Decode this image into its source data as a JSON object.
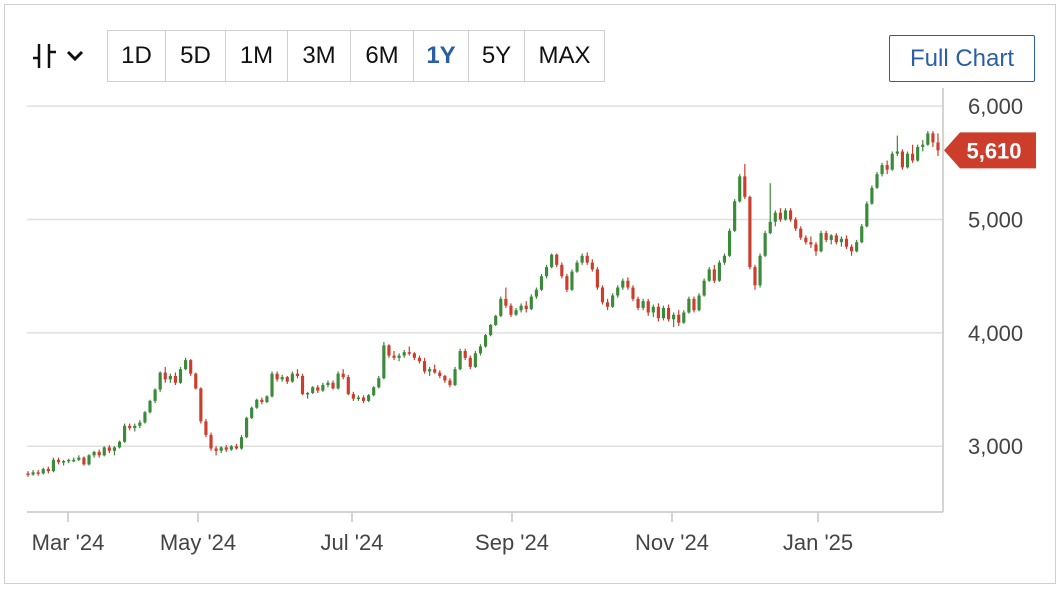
{
  "toolbar": {
    "ranges": [
      "1D",
      "5D",
      "1M",
      "3M",
      "6M",
      "1Y",
      "5Y",
      "MAX"
    ],
    "active_range": "1Y",
    "full_chart_label": "Full Chart",
    "chart_type_icon": "candlestick-icon",
    "dropdown_icon": "chevron-down-icon"
  },
  "colors": {
    "up": "#3a8a3a",
    "down": "#cc3d2b",
    "accent": "#2a5fa8",
    "grid": "#e0e0e0",
    "last_price_bg": "#cc3d2b"
  },
  "chart_data": {
    "type": "candlestick",
    "x_tick_labels": [
      "Mar '24",
      "May '24",
      "Jul '24",
      "Sep '24",
      "Nov '24",
      "Jan '25"
    ],
    "y_tick_labels": [
      "3,000",
      "4,000",
      "5,000",
      "6,000"
    ],
    "y_ticks": [
      3000,
      4000,
      5000,
      6000
    ],
    "ylim": [
      2420,
      6160
    ],
    "last_price": 5610,
    "last_price_label": "5,610",
    "grid": true,
    "legend": "none",
    "series": [
      {
        "values": [
          [
            2760,
            2780,
            2730,
            2750
          ],
          [
            2750,
            2790,
            2740,
            2770
          ],
          [
            2770,
            2790,
            2740,
            2760
          ],
          [
            2760,
            2810,
            2750,
            2800
          ],
          [
            2800,
            2820,
            2760,
            2780
          ],
          [
            2780,
            2900,
            2770,
            2880
          ],
          [
            2880,
            2900,
            2840,
            2860
          ],
          [
            2860,
            2880,
            2830,
            2870
          ],
          [
            2870,
            2890,
            2850,
            2880
          ],
          [
            2880,
            2900,
            2860,
            2880
          ],
          [
            2880,
            2920,
            2870,
            2900
          ],
          [
            2900,
            2910,
            2830,
            2840
          ],
          [
            2840,
            2930,
            2830,
            2920
          ],
          [
            2920,
            2960,
            2900,
            2950
          ],
          [
            2950,
            2970,
            2900,
            2920
          ],
          [
            2920,
            3000,
            2910,
            2990
          ],
          [
            2990,
            3010,
            2940,
            2960
          ],
          [
            2960,
            3000,
            2920,
            2990
          ],
          [
            2990,
            3050,
            2980,
            3040
          ],
          [
            3040,
            3200,
            3030,
            3180
          ],
          [
            3180,
            3200,
            3140,
            3160
          ],
          [
            3160,
            3200,
            3130,
            3180
          ],
          [
            3180,
            3230,
            3160,
            3210
          ],
          [
            3210,
            3310,
            3200,
            3300
          ],
          [
            3300,
            3410,
            3290,
            3400
          ],
          [
            3400,
            3510,
            3380,
            3500
          ],
          [
            3500,
            3660,
            3480,
            3650
          ],
          [
            3650,
            3700,
            3560,
            3590
          ],
          [
            3590,
            3640,
            3560,
            3620
          ],
          [
            3620,
            3650,
            3540,
            3560
          ],
          [
            3560,
            3700,
            3550,
            3680
          ],
          [
            3680,
            3780,
            3670,
            3760
          ],
          [
            3760,
            3770,
            3620,
            3640
          ],
          [
            3640,
            3650,
            3500,
            3510
          ],
          [
            3510,
            3520,
            3200,
            3220
          ],
          [
            3220,
            3240,
            3080,
            3100
          ],
          [
            3100,
            3120,
            2960,
            2980
          ],
          [
            2980,
            3000,
            2920,
            2960
          ],
          [
            2960,
            3000,
            2940,
            2990
          ],
          [
            2990,
            3010,
            2950,
            2970
          ],
          [
            2970,
            3010,
            2960,
            3000
          ],
          [
            3000,
            3020,
            2970,
            2980
          ],
          [
            2980,
            3100,
            2970,
            3080
          ],
          [
            3080,
            3260,
            3070,
            3250
          ],
          [
            3250,
            3350,
            3240,
            3340
          ],
          [
            3340,
            3420,
            3330,
            3410
          ],
          [
            3410,
            3430,
            3370,
            3390
          ],
          [
            3390,
            3450,
            3380,
            3440
          ],
          [
            3440,
            3660,
            3430,
            3640
          ],
          [
            3640,
            3660,
            3570,
            3590
          ],
          [
            3590,
            3630,
            3570,
            3610
          ],
          [
            3610,
            3620,
            3550,
            3570
          ],
          [
            3570,
            3660,
            3560,
            3640
          ],
          [
            3640,
            3680,
            3600,
            3620
          ],
          [
            3620,
            3640,
            3450,
            3460
          ],
          [
            3460,
            3480,
            3420,
            3470
          ],
          [
            3470,
            3530,
            3460,
            3520
          ],
          [
            3520,
            3540,
            3470,
            3490
          ],
          [
            3490,
            3560,
            3480,
            3540
          ],
          [
            3540,
            3580,
            3520,
            3560
          ],
          [
            3560,
            3580,
            3500,
            3510
          ],
          [
            3510,
            3660,
            3500,
            3640
          ],
          [
            3640,
            3680,
            3590,
            3610
          ],
          [
            3610,
            3630,
            3450,
            3460
          ],
          [
            3460,
            3480,
            3400,
            3420
          ],
          [
            3420,
            3450,
            3400,
            3430
          ],
          [
            3430,
            3450,
            3380,
            3400
          ],
          [
            3400,
            3460,
            3390,
            3450
          ],
          [
            3450,
            3530,
            3440,
            3520
          ],
          [
            3520,
            3620,
            3510,
            3600
          ],
          [
            3600,
            3920,
            3590,
            3890
          ],
          [
            3890,
            3900,
            3780,
            3800
          ],
          [
            3800,
            3840,
            3760,
            3780
          ],
          [
            3780,
            3820,
            3750,
            3800
          ],
          [
            3800,
            3850,
            3780,
            3830
          ],
          [
            3830,
            3880,
            3800,
            3820
          ],
          [
            3820,
            3830,
            3760,
            3780
          ],
          [
            3780,
            3800,
            3730,
            3750
          ],
          [
            3750,
            3780,
            3640,
            3660
          ],
          [
            3660,
            3700,
            3620,
            3680
          ],
          [
            3680,
            3720,
            3640,
            3650
          ],
          [
            3650,
            3670,
            3600,
            3620
          ],
          [
            3620,
            3630,
            3560,
            3580
          ],
          [
            3580,
            3600,
            3520,
            3540
          ],
          [
            3540,
            3700,
            3530,
            3680
          ],
          [
            3680,
            3860,
            3670,
            3840
          ],
          [
            3840,
            3860,
            3760,
            3780
          ],
          [
            3780,
            3800,
            3680,
            3700
          ],
          [
            3700,
            3840,
            3690,
            3820
          ],
          [
            3820,
            3900,
            3800,
            3880
          ],
          [
            3880,
            3990,
            3870,
            3980
          ],
          [
            3980,
            4080,
            3970,
            4070
          ],
          [
            4070,
            4160,
            4060,
            4150
          ],
          [
            4150,
            4320,
            4140,
            4300
          ],
          [
            4300,
            4400,
            4220,
            4240
          ],
          [
            4240,
            4260,
            4140,
            4160
          ],
          [
            4160,
            4220,
            4150,
            4200
          ],
          [
            4200,
            4260,
            4180,
            4240
          ],
          [
            4240,
            4280,
            4180,
            4210
          ],
          [
            4210,
            4340,
            4200,
            4320
          ],
          [
            4320,
            4400,
            4300,
            4380
          ],
          [
            4380,
            4520,
            4370,
            4500
          ],
          [
            4500,
            4600,
            4480,
            4580
          ],
          [
            4580,
            4700,
            4570,
            4690
          ],
          [
            4690,
            4700,
            4580,
            4600
          ],
          [
            4600,
            4620,
            4480,
            4500
          ],
          [
            4500,
            4520,
            4360,
            4380
          ],
          [
            4380,
            4560,
            4370,
            4540
          ],
          [
            4540,
            4640,
            4530,
            4620
          ],
          [
            4620,
            4700,
            4600,
            4680
          ],
          [
            4680,
            4710,
            4600,
            4620
          ],
          [
            4620,
            4650,
            4540,
            4560
          ],
          [
            4560,
            4580,
            4380,
            4400
          ],
          [
            4400,
            4420,
            4250,
            4270
          ],
          [
            4270,
            4300,
            4200,
            4230
          ],
          [
            4230,
            4350,
            4220,
            4330
          ],
          [
            4330,
            4420,
            4310,
            4400
          ],
          [
            4400,
            4480,
            4380,
            4460
          ],
          [
            4460,
            4490,
            4380,
            4400
          ],
          [
            4400,
            4420,
            4280,
            4300
          ],
          [
            4300,
            4320,
            4200,
            4220
          ],
          [
            4220,
            4300,
            4200,
            4280
          ],
          [
            4280,
            4300,
            4150,
            4180
          ],
          [
            4180,
            4250,
            4140,
            4230
          ],
          [
            4230,
            4260,
            4100,
            4130
          ],
          [
            4130,
            4240,
            4110,
            4220
          ],
          [
            4220,
            4250,
            4100,
            4120
          ],
          [
            4120,
            4180,
            4050,
            4160
          ],
          [
            4160,
            4200,
            4060,
            4090
          ],
          [
            4090,
            4200,
            4080,
            4180
          ],
          [
            4180,
            4320,
            4170,
            4300
          ],
          [
            4300,
            4320,
            4180,
            4200
          ],
          [
            4200,
            4350,
            4190,
            4330
          ],
          [
            4330,
            4480,
            4320,
            4460
          ],
          [
            4460,
            4580,
            4450,
            4560
          ],
          [
            4560,
            4600,
            4440,
            4460
          ],
          [
            4460,
            4640,
            4450,
            4620
          ],
          [
            4620,
            4700,
            4600,
            4680
          ],
          [
            4680,
            4920,
            4670,
            4900
          ],
          [
            4900,
            5180,
            4890,
            5160
          ],
          [
            5160,
            5400,
            5150,
            5380
          ],
          [
            5380,
            5490,
            5180,
            5200
          ],
          [
            5200,
            5210,
            4560,
            4580
          ],
          [
            4580,
            4600,
            4380,
            4420
          ],
          [
            4420,
            4700,
            4400,
            4680
          ],
          [
            4680,
            4900,
            4670,
            4880
          ],
          [
            4880,
            5320,
            4870,
            4980
          ],
          [
            4980,
            5080,
            4940,
            5060
          ],
          [
            5060,
            5100,
            4980,
            5000
          ],
          [
            5000,
            5100,
            4990,
            5080
          ],
          [
            5080,
            5100,
            4980,
            5000
          ],
          [
            5000,
            5020,
            4900,
            4920
          ],
          [
            4920,
            4940,
            4820,
            4840
          ],
          [
            4840,
            4860,
            4780,
            4800
          ],
          [
            4800,
            4850,
            4750,
            4780
          ],
          [
            4780,
            4800,
            4680,
            4720
          ],
          [
            4720,
            4900,
            4710,
            4880
          ],
          [
            4880,
            4900,
            4800,
            4820
          ],
          [
            4820,
            4870,
            4780,
            4860
          ],
          [
            4860,
            4880,
            4780,
            4800
          ],
          [
            4800,
            4850,
            4760,
            4830
          ],
          [
            4830,
            4860,
            4740,
            4760
          ],
          [
            4760,
            4780,
            4680,
            4720
          ],
          [
            4720,
            4820,
            4710,
            4800
          ],
          [
            4800,
            4960,
            4790,
            4940
          ],
          [
            4940,
            5160,
            4930,
            5140
          ],
          [
            5140,
            5300,
            5130,
            5280
          ],
          [
            5280,
            5420,
            5270,
            5400
          ],
          [
            5400,
            5500,
            5380,
            5480
          ],
          [
            5480,
            5520,
            5400,
            5440
          ],
          [
            5440,
            5600,
            5430,
            5580
          ],
          [
            5580,
            5740,
            5560,
            5600
          ],
          [
            5600,
            5620,
            5440,
            5460
          ],
          [
            5460,
            5600,
            5450,
            5580
          ],
          [
            5580,
            5660,
            5500,
            5520
          ],
          [
            5520,
            5660,
            5510,
            5640
          ],
          [
            5640,
            5700,
            5600,
            5660
          ],
          [
            5660,
            5780,
            5650,
            5760
          ],
          [
            5760,
            5780,
            5640,
            5680
          ],
          [
            5680,
            5760,
            5560,
            5610
          ]
        ]
      }
    ]
  }
}
